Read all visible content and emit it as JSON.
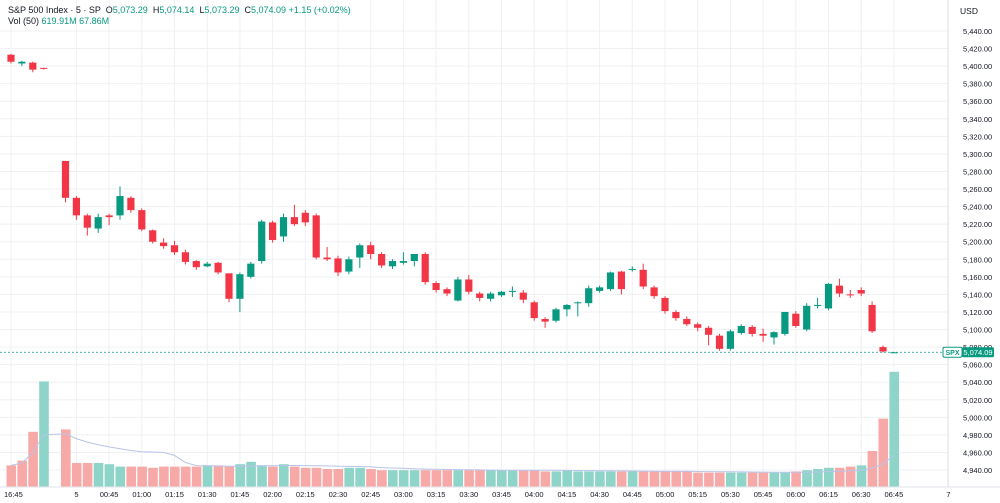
{
  "header": {
    "symbol": "S&P 500 Index · 5 · SP",
    "ohlc": [
      {
        "label": "O",
        "value": "5,073.29"
      },
      {
        "label": "H",
        "value": "5,074.14"
      },
      {
        "label": "L",
        "value": "5,073.29"
      },
      {
        "label": "C",
        "value": "5,074.09"
      }
    ],
    "change": "+1.15 (+0.02%)",
    "volume_label": "Vol (50)",
    "volume_values": [
      "619.91M",
      "67.86M"
    ],
    "currency": "USD"
  },
  "colors": {
    "up": "#089981",
    "down": "#f23645",
    "vol_up": "#8fd4c9",
    "vol_down": "#f7a9a7",
    "grid": "#eef0f3",
    "text": "#131722",
    "ma_line": "#b9c4e8"
  },
  "price_tag": {
    "symbol": "SPX",
    "value": "5,074.09",
    "price": 5074.09
  },
  "chart_data": {
    "type": "candlestick",
    "y_range": [
      4930,
      5450
    ],
    "y_ticks": [
      "5,440.00",
      "5,420.00",
      "5,400.00",
      "5,380.00",
      "5,360.00",
      "5,340.00",
      "5,320.00",
      "5,300.00",
      "5,280.00",
      "5,260.00",
      "5,240.00",
      "5,220.00",
      "5,200.00",
      "5,180.00",
      "5,160.00",
      "5,140.00",
      "5,120.00",
      "5,100.00",
      "5,080.00",
      "5,060.00",
      "5,040.00",
      "5,020.00",
      "5,000.00",
      "4,980.00",
      "4,960.00",
      "4,940.00"
    ],
    "x_ticks": [
      {
        "i": 0,
        "label": "16:45"
      },
      {
        "i": 6,
        "label": "5"
      },
      {
        "i": 9,
        "label": "00:45"
      },
      {
        "i": 12,
        "label": "01:00"
      },
      {
        "i": 15,
        "label": "01:15"
      },
      {
        "i": 18,
        "label": "01:30"
      },
      {
        "i": 21,
        "label": "01:45"
      },
      {
        "i": 24,
        "label": "02:00"
      },
      {
        "i": 27,
        "label": "02:15"
      },
      {
        "i": 30,
        "label": "02:30"
      },
      {
        "i": 33,
        "label": "02:45"
      },
      {
        "i": 36,
        "label": "03:00"
      },
      {
        "i": 39,
        "label": "03:15"
      },
      {
        "i": 42,
        "label": "03:30"
      },
      {
        "i": 45,
        "label": "03:45"
      },
      {
        "i": 48,
        "label": "04:00"
      },
      {
        "i": 51,
        "label": "04:15"
      },
      {
        "i": 54,
        "label": "04:30"
      },
      {
        "i": 57,
        "label": "04:45"
      },
      {
        "i": 60,
        "label": "05:00"
      },
      {
        "i": 63,
        "label": "05:15"
      },
      {
        "i": 66,
        "label": "05:30"
      },
      {
        "i": 69,
        "label": "05:45"
      },
      {
        "i": 72,
        "label": "06:00"
      },
      {
        "i": 75,
        "label": "06:15"
      },
      {
        "i": 78,
        "label": "06:30"
      },
      {
        "i": 81,
        "label": "06:45"
      },
      {
        "i": 86,
        "label": "7"
      }
    ],
    "candles": [
      {
        "o": 5413,
        "h": 5414,
        "l": 5403,
        "c": 5405
      },
      {
        "o": 5403,
        "h": 5406,
        "l": 5400,
        "c": 5405
      },
      {
        "o": 5404,
        "h": 5405,
        "l": 5393,
        "c": 5396
      },
      {
        "o": 5398,
        "h": 5398,
        "l": 5396,
        "c": 5397
      },
      null,
      {
        "o": 5292,
        "h": 5292,
        "l": 5245,
        "c": 5250
      },
      {
        "o": 5250,
        "h": 5252,
        "l": 5225,
        "c": 5230
      },
      {
        "o": 5230,
        "h": 5232,
        "l": 5207,
        "c": 5216
      },
      {
        "o": 5215,
        "h": 5232,
        "l": 5210,
        "c": 5228
      },
      {
        "o": 5230,
        "h": 5232,
        "l": 5219,
        "c": 5228
      },
      {
        "o": 5230,
        "h": 5263,
        "l": 5225,
        "c": 5252
      },
      {
        "o": 5250,
        "h": 5252,
        "l": 5233,
        "c": 5236
      },
      {
        "o": 5236,
        "h": 5238,
        "l": 5212,
        "c": 5214
      },
      {
        "o": 5213,
        "h": 5214,
        "l": 5198,
        "c": 5200
      },
      {
        "o": 5199,
        "h": 5204,
        "l": 5192,
        "c": 5195
      },
      {
        "o": 5196,
        "h": 5201,
        "l": 5185,
        "c": 5188
      },
      {
        "o": 5188,
        "h": 5191,
        "l": 5174,
        "c": 5177
      },
      {
        "o": 5178,
        "h": 5179,
        "l": 5168,
        "c": 5171
      },
      {
        "o": 5172,
        "h": 5177,
        "l": 5171,
        "c": 5175
      },
      {
        "o": 5176,
        "h": 5177,
        "l": 5163,
        "c": 5165
      },
      {
        "o": 5164,
        "h": 5164,
        "l": 5131,
        "c": 5135
      },
      {
        "o": 5135,
        "h": 5165,
        "l": 5120,
        "c": 5163
      },
      {
        "o": 5160,
        "h": 5177,
        "l": 5158,
        "c": 5175
      },
      {
        "o": 5178,
        "h": 5225,
        "l": 5175,
        "c": 5223
      },
      {
        "o": 5222,
        "h": 5224,
        "l": 5199,
        "c": 5202
      },
      {
        "o": 5206,
        "h": 5232,
        "l": 5200,
        "c": 5228
      },
      {
        "o": 5228,
        "h": 5242,
        "l": 5218,
        "c": 5220
      },
      {
        "o": 5233,
        "h": 5236,
        "l": 5218,
        "c": 5222
      },
      {
        "o": 5230,
        "h": 5232,
        "l": 5180,
        "c": 5182
      },
      {
        "o": 5182,
        "h": 5194,
        "l": 5178,
        "c": 5180
      },
      {
        "o": 5181,
        "h": 5184,
        "l": 5161,
        "c": 5165
      },
      {
        "o": 5166,
        "h": 5183,
        "l": 5163,
        "c": 5180
      },
      {
        "o": 5182,
        "h": 5198,
        "l": 5170,
        "c": 5196
      },
      {
        "o": 5196,
        "h": 5200,
        "l": 5180,
        "c": 5186
      },
      {
        "o": 5186,
        "h": 5188,
        "l": 5170,
        "c": 5173
      },
      {
        "o": 5172,
        "h": 5180,
        "l": 5169,
        "c": 5178
      },
      {
        "o": 5176,
        "h": 5188,
        "l": 5174,
        "c": 5178
      },
      {
        "o": 5178,
        "h": 5186,
        "l": 5172,
        "c": 5186
      },
      {
        "o": 5186,
        "h": 5188,
        "l": 5151,
        "c": 5154
      },
      {
        "o": 5153,
        "h": 5155,
        "l": 5142,
        "c": 5145
      },
      {
        "o": 5146,
        "h": 5148,
        "l": 5138,
        "c": 5141
      },
      {
        "o": 5133,
        "h": 5160,
        "l": 5132,
        "c": 5157
      },
      {
        "o": 5157,
        "h": 5162,
        "l": 5140,
        "c": 5143
      },
      {
        "o": 5141,
        "h": 5143,
        "l": 5132,
        "c": 5136
      },
      {
        "o": 5135,
        "h": 5143,
        "l": 5132,
        "c": 5141
      },
      {
        "o": 5139,
        "h": 5144,
        "l": 5137,
        "c": 5143
      },
      {
        "o": 5143,
        "h": 5149,
        "l": 5137,
        "c": 5144
      },
      {
        "o": 5142,
        "h": 5145,
        "l": 5130,
        "c": 5134
      },
      {
        "o": 5131,
        "h": 5133,
        "l": 5110,
        "c": 5113
      },
      {
        "o": 5112,
        "h": 5114,
        "l": 5102,
        "c": 5109
      },
      {
        "o": 5110,
        "h": 5125,
        "l": 5108,
        "c": 5123
      },
      {
        "o": 5123,
        "h": 5129,
        "l": 5115,
        "c": 5128
      },
      {
        "o": 5130,
        "h": 5132,
        "l": 5115,
        "c": 5131
      },
      {
        "o": 5130,
        "h": 5150,
        "l": 5126,
        "c": 5147
      },
      {
        "o": 5144,
        "h": 5150,
        "l": 5142,
        "c": 5148
      },
      {
        "o": 5146,
        "h": 5166,
        "l": 5144,
        "c": 5165
      },
      {
        "o": 5166,
        "h": 5167,
        "l": 5140,
        "c": 5146
      },
      {
        "o": 5168,
        "h": 5172,
        "l": 5166,
        "c": 5169
      },
      {
        "o": 5168,
        "h": 5175,
        "l": 5146,
        "c": 5149
      },
      {
        "o": 5148,
        "h": 5150,
        "l": 5135,
        "c": 5138
      },
      {
        "o": 5136,
        "h": 5138,
        "l": 5118,
        "c": 5121
      },
      {
        "o": 5120,
        "h": 5122,
        "l": 5110,
        "c": 5113
      },
      {
        "o": 5112,
        "h": 5115,
        "l": 5104,
        "c": 5106
      },
      {
        "o": 5106,
        "h": 5108,
        "l": 5098,
        "c": 5102
      },
      {
        "o": 5102,
        "h": 5104,
        "l": 5082,
        "c": 5094
      },
      {
        "o": 5093,
        "h": 5095,
        "l": 5076,
        "c": 5078
      },
      {
        "o": 5078,
        "h": 5100,
        "l": 5076,
        "c": 5098
      },
      {
        "o": 5096,
        "h": 5106,
        "l": 5094,
        "c": 5104
      },
      {
        "o": 5103,
        "h": 5105,
        "l": 5092,
        "c": 5095
      },
      {
        "o": 5095,
        "h": 5101,
        "l": 5086,
        "c": 5093
      },
      {
        "o": 5091,
        "h": 5098,
        "l": 5083,
        "c": 5097
      },
      {
        "o": 5095,
        "h": 5120,
        "l": 5093,
        "c": 5120
      },
      {
        "o": 5118,
        "h": 5121,
        "l": 5102,
        "c": 5104
      },
      {
        "o": 5100,
        "h": 5130,
        "l": 5098,
        "c": 5127
      },
      {
        "o": 5128,
        "h": 5136,
        "l": 5124,
        "c": 5128
      },
      {
        "o": 5124,
        "h": 5153,
        "l": 5122,
        "c": 5152
      },
      {
        "o": 5150,
        "h": 5158,
        "l": 5137,
        "c": 5141
      },
      {
        "o": 5140,
        "h": 5145,
        "l": 5136,
        "c": 5139
      },
      {
        "o": 5145,
        "h": 5148,
        "l": 5138,
        "c": 5141
      },
      {
        "o": 5128,
        "h": 5132,
        "l": 5096,
        "c": 5098
      },
      {
        "o": 5080,
        "h": 5082,
        "l": 5074,
        "c": 5075
      },
      {
        "o": 5073.29,
        "h": 5074.14,
        "l": 5073.29,
        "c": 5074.09
      }
    ],
    "volume_up": [
      false,
      false,
      false,
      true,
      null,
      false,
      false,
      false,
      true,
      true,
      true,
      false,
      false,
      false,
      false,
      false,
      false,
      false,
      true,
      false,
      false,
      true,
      true,
      true,
      false,
      true,
      false,
      false,
      false,
      false,
      false,
      true,
      true,
      false,
      false,
      true,
      true,
      true,
      false,
      false,
      false,
      true,
      false,
      false,
      true,
      true,
      true,
      false,
      false,
      false,
      true,
      true,
      true,
      true,
      true,
      true,
      false,
      true,
      false,
      false,
      false,
      false,
      false,
      false,
      false,
      false,
      true,
      true,
      false,
      false,
      true,
      true,
      false,
      true,
      true,
      true,
      false,
      false,
      true,
      false,
      false,
      true
    ],
    "volume": [
      18,
      22,
      46,
      88,
      null,
      48,
      20,
      20,
      20,
      19,
      17,
      17,
      17,
      16,
      17,
      17,
      17,
      17,
      18,
      18,
      17,
      19,
      21,
      18,
      17,
      19,
      17,
      16,
      16,
      15,
      15,
      16,
      16,
      15,
      14,
      14,
      14,
      14,
      14,
      14,
      14,
      14,
      14,
      14,
      14,
      14,
      14,
      14,
      14,
      13,
      13,
      14,
      13,
      13,
      13,
      13,
      13,
      13,
      13,
      13,
      13,
      13,
      13,
      12,
      12,
      12,
      12,
      12,
      12,
      12,
      12,
      12,
      13,
      14,
      15,
      16,
      16,
      17,
      18,
      30,
      57,
      96
    ]
  }
}
